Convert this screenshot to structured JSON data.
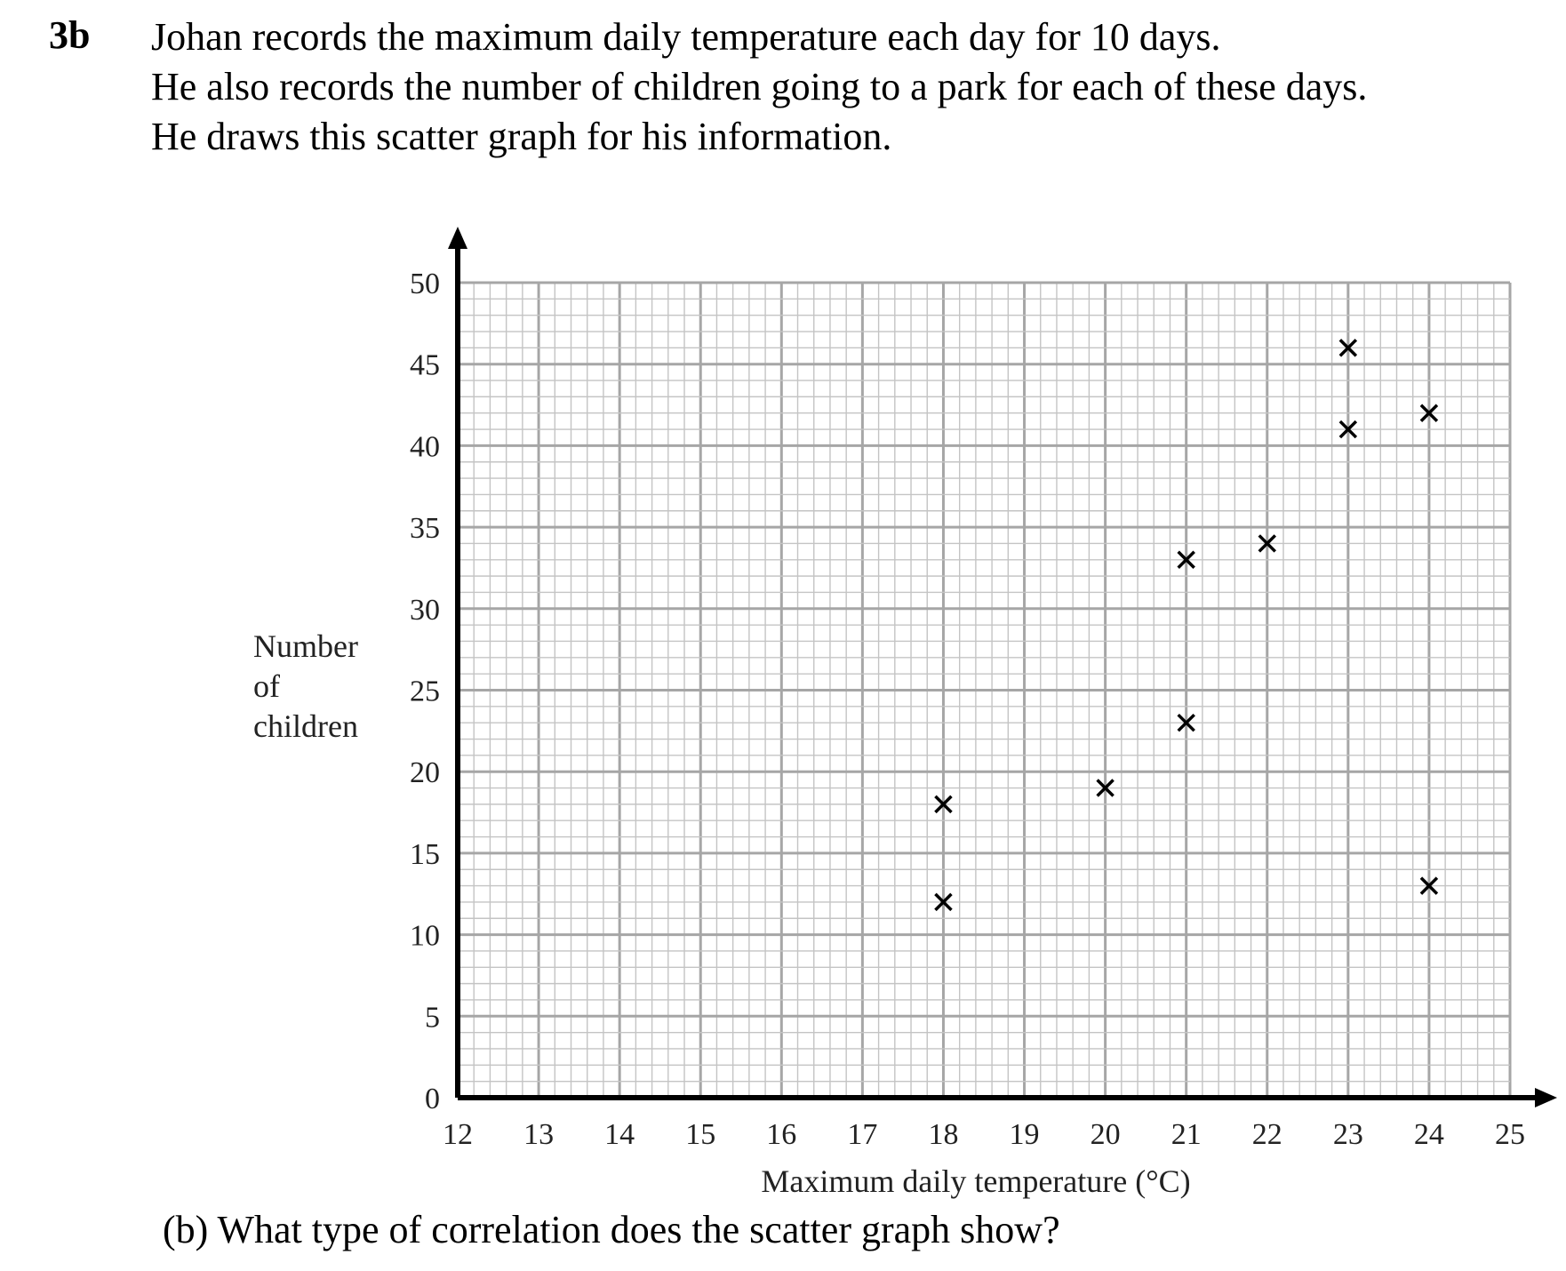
{
  "question": {
    "number": "3b",
    "intro_lines": [
      "Johan records the maximum daily temperature each day for 10 days.",
      "He also records the number of children going to a park for each of these days.",
      "He draws this scatter graph for his information."
    ],
    "part_b": "(b) What type of correlation does the scatter graph show?"
  },
  "chart_data": {
    "type": "scatter",
    "title": "",
    "xlabel": "Maximum daily temperature (°C)",
    "ylabel_lines": [
      "Number",
      "of",
      "children"
    ],
    "xlim": [
      12,
      25
    ],
    "ylim": [
      0,
      50
    ],
    "x_ticks": [
      12,
      13,
      14,
      15,
      16,
      17,
      18,
      19,
      20,
      21,
      22,
      23,
      24,
      25
    ],
    "y_ticks": [
      0,
      5,
      10,
      15,
      20,
      25,
      30,
      35,
      40,
      45,
      50
    ],
    "grid": true,
    "marker": "×",
    "points": [
      {
        "x": 18,
        "y": 18
      },
      {
        "x": 18,
        "y": 12
      },
      {
        "x": 20,
        "y": 19
      },
      {
        "x": 21,
        "y": 33
      },
      {
        "x": 21,
        "y": 23
      },
      {
        "x": 22,
        "y": 34
      },
      {
        "x": 23,
        "y": 46
      },
      {
        "x": 23,
        "y": 41
      },
      {
        "x": 24,
        "y": 42
      },
      {
        "x": 24,
        "y": 13
      }
    ],
    "colors": {
      "grid_minor": "#c4c4c4",
      "grid_major": "#a6a6a6",
      "axis": "#000000",
      "marker": "#000000"
    }
  }
}
